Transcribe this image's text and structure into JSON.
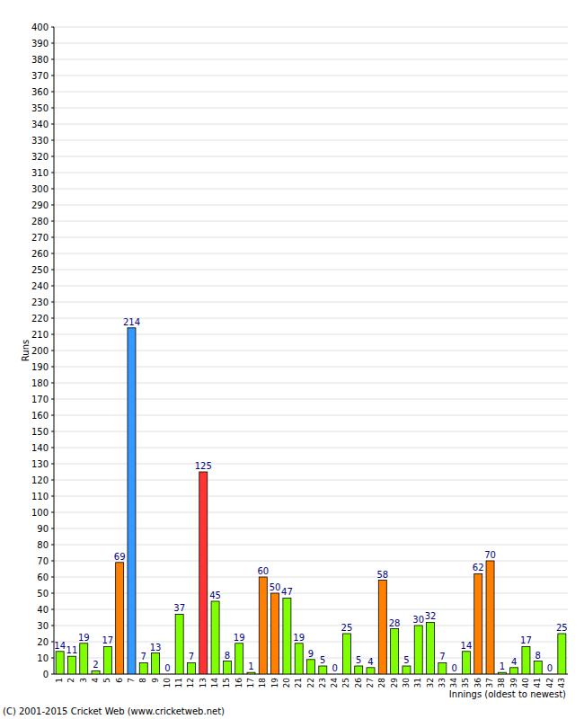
{
  "chart_data": {
    "type": "bar",
    "y_label": "Runs",
    "x_label": "Innings (oldest to newest)",
    "annotations": [
      "(C) 2001-2015 Cricket Web (www.cricketweb.net)"
    ],
    "categories": [
      "1",
      "2",
      "3",
      "4",
      "5",
      "6",
      "7",
      "8",
      "9",
      "10",
      "11",
      "12",
      "13",
      "14",
      "15",
      "16",
      "17",
      "18",
      "19",
      "20",
      "21",
      "22",
      "23",
      "24",
      "25",
      "26",
      "27",
      "28",
      "29",
      "30",
      "31",
      "32",
      "33",
      "34",
      "35",
      "36",
      "37",
      "38",
      "39",
      "40",
      "41",
      "42",
      "43"
    ],
    "values": [
      14,
      11,
      19,
      2,
      17,
      69,
      214,
      7,
      13,
      0,
      37,
      7,
      125,
      45,
      8,
      19,
      1,
      60,
      50,
      47,
      19,
      9,
      5,
      0,
      25,
      5,
      4,
      58,
      28,
      5,
      30,
      32,
      7,
      0,
      14,
      62,
      70,
      1,
      4,
      17,
      8,
      0,
      25
    ],
    "colors": [
      "#80ff00",
      "#80ff00",
      "#80ff00",
      "#80ff00",
      "#80ff00",
      "#ff8000",
      "#3399ff",
      "#80ff00",
      "#80ff00",
      "#80ff00",
      "#80ff00",
      "#80ff00",
      "#ff3333",
      "#80ff00",
      "#80ff00",
      "#80ff00",
      "#80ff00",
      "#ff8000",
      "#ff8000",
      "#80ff00",
      "#80ff00",
      "#80ff00",
      "#80ff00",
      "#80ff00",
      "#80ff00",
      "#80ff00",
      "#80ff00",
      "#ff8000",
      "#80ff00",
      "#80ff00",
      "#80ff00",
      "#80ff00",
      "#80ff00",
      "#80ff00",
      "#80ff00",
      "#ff8000",
      "#ff8000",
      "#80ff00",
      "#80ff00",
      "#80ff00",
      "#80ff00",
      "#80ff00",
      "#80ff00"
    ],
    "ylim": [
      0,
      400
    ],
    "yticks": [
      0,
      10,
      20,
      30,
      40,
      50,
      60,
      70,
      80,
      90,
      100,
      110,
      120,
      130,
      140,
      150,
      160,
      170,
      180,
      190,
      200,
      210,
      220,
      230,
      240,
      250,
      260,
      270,
      280,
      290,
      300,
      310,
      320,
      330,
      340,
      350,
      360,
      370,
      380,
      390,
      400
    ],
    "grid": true,
    "data_labels": true
  }
}
